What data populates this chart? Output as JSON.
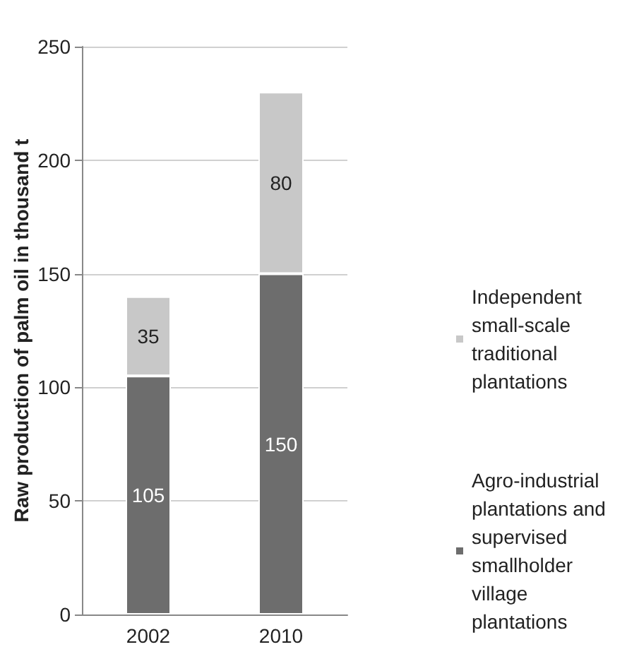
{
  "chart_data": {
    "type": "bar",
    "stacked": true,
    "ylabel": "Raw production of palm oil in thousand t",
    "categories": [
      "2002",
      "2010"
    ],
    "series": [
      {
        "name": "Agro-industrial plantations and supervised smallholder village plantations",
        "color": "#6d6d6d",
        "values": [
          105,
          150
        ]
      },
      {
        "name": "Independent small-scale traditional plantations",
        "color": "#c8c8c8",
        "values": [
          35,
          80
        ]
      }
    ],
    "ylim": [
      0,
      250
    ],
    "yticks": [
      0,
      50,
      100,
      150,
      200,
      250
    ],
    "grid": "y",
    "legend": "right",
    "data_labels": true
  }
}
